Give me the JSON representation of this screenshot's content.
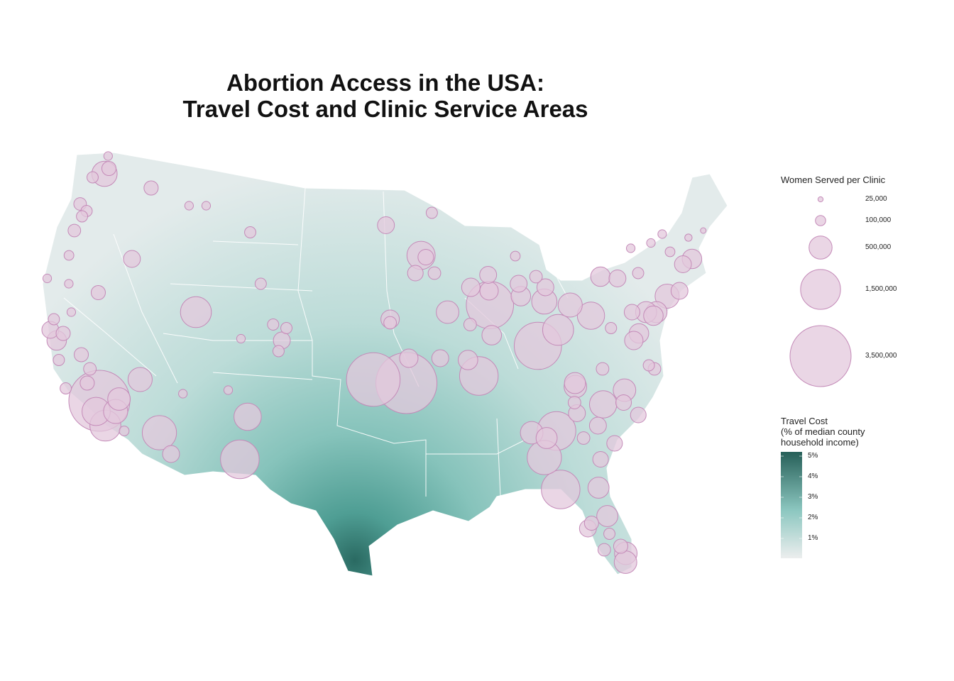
{
  "title": {
    "line1": "Abortion Access in the USA:",
    "line2": "Travel Cost and Clinic Service Areas"
  },
  "size_legend": {
    "title": "Women Served per Clinic",
    "entries": [
      {
        "value": 25000,
        "label": "25,000"
      },
      {
        "value": 100000,
        "label": "100,000"
      },
      {
        "value": 500000,
        "label": "500,000"
      },
      {
        "value": 1500000,
        "label": "1,500,000"
      },
      {
        "value": 3500000,
        "label": "3,500,000"
      }
    ]
  },
  "color_legend": {
    "title_line1": "Travel Cost",
    "title_line2": "(% of median county",
    "title_line3": "household income)",
    "ticks": [
      "5%",
      "4%",
      "3%",
      "2%",
      "1%"
    ],
    "range": [
      0,
      5.2
    ],
    "low_color": "#eceeee",
    "mid_color": "#8cc7c0",
    "high_color": "#265f58"
  },
  "colors": {
    "clinic_fill": "#e3c8dc",
    "clinic_stroke": "#c48ab8",
    "state_border": "#ffffff"
  },
  "clinics": [
    {
      "lon": -97.9,
      "lat": 36.0,
      "served": 2700000
    },
    {
      "lon": -95.3,
      "lat": 35.8,
      "served": 3500000
    },
    {
      "lon": -119.1,
      "lat": 34.8,
      "served": 3500000
    },
    {
      "lon": -84.75,
      "lat": 37.9,
      "served": 2100000
    },
    {
      "lon": -88.4,
      "lat": 40.2,
      "served": 2100000
    },
    {
      "lon": -89.6,
      "lat": 36.2,
      "served": 1400000
    },
    {
      "lon": -84.0,
      "lat": 29.8,
      "served": 1400000
    },
    {
      "lon": -85.0,
      "lat": 31.6,
      "served": 1100000
    },
    {
      "lon": -83.9,
      "lat": 33.1,
      "served": 1400000
    },
    {
      "lon": -107.8,
      "lat": 31.5,
      "served": 1400000
    },
    {
      "lon": -114.1,
      "lat": 33.0,
      "served": 1100000
    },
    {
      "lon": -112.5,
      "lat": 39.8,
      "served": 900000
    },
    {
      "lon": -118.3,
      "lat": 33.4,
      "served": 900000
    },
    {
      "lon": -119.2,
      "lat": 34.2,
      "served": 750000
    },
    {
      "lon": -94.0,
      "lat": 43.0,
      "served": 750000
    },
    {
      "lon": -83.0,
      "lat": 38.8,
      "served": 900000
    },
    {
      "lon": -80.2,
      "lat": 39.6,
      "served": 700000
    },
    {
      "lon": -80.1,
      "lat": 34.6,
      "served": 700000
    },
    {
      "lon": -82.1,
      "lat": 35.6,
      "served": 480000
    },
    {
      "lon": -83.9,
      "lat": 40.4,
      "served": 600000
    },
    {
      "lon": -81.8,
      "lat": 40.2,
      "served": 550000
    },
    {
      "lon": -107.5,
      "lat": 33.9,
      "served": 700000
    },
    {
      "lon": -116.2,
      "lat": 36.0,
      "served": 550000
    },
    {
      "lon": -117.6,
      "lat": 34.9,
      "served": 480000
    },
    {
      "lon": -79.8,
      "lat": 26.2,
      "served": 480000
    },
    {
      "lon": -79.9,
      "lat": 25.7,
      "served": 480000
    },
    {
      "lon": -80.8,
      "lat": 28.3,
      "served": 420000
    },
    {
      "lon": -81.2,
      "lat": 29.9,
      "served": 420000
    },
    {
      "lon": -78.3,
      "lat": 35.4,
      "served": 480000
    },
    {
      "lon": -91.9,
      "lat": 39.8,
      "served": 480000
    },
    {
      "lon": -96.6,
      "lat": 39.4,
      "served": 320000
    },
    {
      "lon": -95.1,
      "lat": 37.2,
      "served": 320000
    },
    {
      "lon": -92.6,
      "lat": 37.2,
      "served": 270000
    },
    {
      "lon": -73.7,
      "lat": 40.7,
      "served": 550000
    },
    {
      "lon": -74.8,
      "lat": 39.8,
      "served": 420000
    },
    {
      "lon": -76.5,
      "lat": 38.6,
      "served": 360000
    },
    {
      "lon": -77.0,
      "lat": 38.2,
      "served": 320000
    },
    {
      "lon": -77.6,
      "lat": 41.7,
      "served": 270000
    },
    {
      "lon": -79.0,
      "lat": 41.8,
      "served": 360000
    },
    {
      "lon": -71.9,
      "lat": 42.5,
      "served": 270000
    },
    {
      "lon": -71.05,
      "lat": 42.8,
      "served": 360000
    },
    {
      "lon": -72.6,
      "lat": 41.0,
      "served": 270000
    },
    {
      "lon": -75.65,
      "lat": 39.8,
      "served": 420000
    },
    {
      "lon": -76.8,
      "lat": 39.8,
      "served": 230000
    },
    {
      "lon": -73.2,
      "lat": 44.2,
      "served": 70000
    },
    {
      "lon": -71.0,
      "lat": 44.0,
      "served": 50000
    },
    {
      "lon": -69.6,
      "lat": 44.4,
      "served": 30000
    },
    {
      "lon": -74.3,
      "lat": 43.7,
      "served": 70000
    },
    {
      "lon": -76.1,
      "lat": 43.4,
      "served": 70000
    },
    {
      "lon": -72.8,
      "lat": 43.2,
      "served": 90000
    },
    {
      "lon": -75.8,
      "lat": 42.0,
      "served": 120000
    },
    {
      "lon": -122.3,
      "lat": 47.6,
      "served": 600000
    },
    {
      "lon": -122.0,
      "lat": 47.9,
      "served": 190000
    },
    {
      "lon": -117.9,
      "lat": 46.8,
      "served": 190000
    },
    {
      "lon": -123.9,
      "lat": 45.9,
      "served": 150000
    },
    {
      "lon": -123.2,
      "lat": 45.5,
      "served": 120000
    },
    {
      "lon": -123.5,
      "lat": 45.2,
      "served": 120000
    },
    {
      "lon": -123.9,
      "lat": 44.4,
      "served": 150000
    },
    {
      "lon": -123.9,
      "lat": 43.0,
      "served": 90000
    },
    {
      "lon": -118.5,
      "lat": 42.8,
      "served": 270000
    },
    {
      "lon": -120.8,
      "lat": 40.9,
      "served": 190000
    },
    {
      "lon": -114.3,
      "lat": 45.8,
      "served": 70000
    },
    {
      "lon": -112.8,
      "lat": 45.8,
      "served": 70000
    },
    {
      "lon": -108.7,
      "lat": 44.3,
      "served": 120000
    },
    {
      "lon": -97.0,
      "lat": 44.7,
      "served": 270000
    },
    {
      "lon": -93.0,
      "lat": 45.4,
      "served": 120000
    },
    {
      "lon": -122.3,
      "lat": 48.6,
      "served": 70000
    },
    {
      "lon": -123.3,
      "lat": 47.4,
      "served": 120000
    },
    {
      "lon": -124.1,
      "lat": 38.8,
      "served": 270000
    },
    {
      "lon": -123.4,
      "lat": 38.2,
      "served": 360000
    },
    {
      "lon": -124.0,
      "lat": 39.4,
      "served": 120000
    },
    {
      "lon": -123.0,
      "lat": 38.6,
      "served": 190000
    },
    {
      "lon": -122.9,
      "lat": 37.1,
      "served": 120000
    },
    {
      "lon": -122.7,
      "lat": 39.8,
      "served": 70000
    },
    {
      "lon": -125.3,
      "lat": 41.7,
      "served": 70000
    },
    {
      "lon": -123.4,
      "lat": 41.4,
      "served": 70000
    },
    {
      "lon": -121.2,
      "lat": 37.4,
      "served": 190000
    },
    {
      "lon": -120.3,
      "lat": 36.6,
      "served": 150000
    },
    {
      "lon": -121.9,
      "lat": 35.5,
      "served": 120000
    },
    {
      "lon": -120.3,
      "lat": 35.8,
      "served": 190000
    },
    {
      "lon": -105.3,
      "lat": 38.2,
      "served": 270000
    },
    {
      "lon": -106.1,
      "lat": 39.1,
      "served": 120000
    },
    {
      "lon": -105.0,
      "lat": 38.9,
      "served": 120000
    },
    {
      "lon": -105.5,
      "lat": 37.6,
      "served": 120000
    },
    {
      "lon": -107.4,
      "lat": 41.4,
      "served": 120000
    },
    {
      "lon": -108.6,
      "lat": 38.3,
      "served": 70000
    },
    {
      "lon": -89.9,
      "lat": 41.2,
      "served": 320000
    },
    {
      "lon": -88.4,
      "lat": 41.9,
      "served": 270000
    },
    {
      "lon": -88.4,
      "lat": 41.0,
      "served": 320000
    },
    {
      "lon": -88.4,
      "lat": 38.5,
      "served": 360000
    },
    {
      "lon": -90.1,
      "lat": 39.1,
      "served": 150000
    },
    {
      "lon": -85.9,
      "lat": 41.4,
      "served": 270000
    },
    {
      "lon": -84.4,
      "lat": 41.8,
      "served": 150000
    },
    {
      "lon": -85.8,
      "lat": 40.7,
      "served": 360000
    },
    {
      "lon": -83.7,
      "lat": 41.2,
      "served": 270000
    },
    {
      "lon": -92.9,
      "lat": 42.0,
      "served": 150000
    },
    {
      "lon": -94.5,
      "lat": 42.0,
      "served": 230000
    },
    {
      "lon": -93.6,
      "lat": 42.9,
      "served": 230000
    },
    {
      "lon": -86.0,
      "lat": 42.96,
      "served": 90000
    },
    {
      "lon": -96.6,
      "lat": 39.2,
      "served": 150000
    },
    {
      "lon": -90.4,
      "lat": 37.1,
      "served": 360000
    },
    {
      "lon": -85.8,
      "lat": 33.0,
      "served": 480000
    },
    {
      "lon": -84.7,
      "lat": 32.7,
      "served": 420000
    },
    {
      "lon": -81.9,
      "lat": 32.7,
      "served": 150000
    },
    {
      "lon": -79.6,
      "lat": 32.4,
      "served": 230000
    },
    {
      "lon": -80.8,
      "lat": 31.5,
      "served": 230000
    },
    {
      "lon": -82.3,
      "lat": 27.6,
      "served": 270000
    },
    {
      "lon": -82.0,
      "lat": 27.9,
      "served": 190000
    },
    {
      "lon": -80.8,
      "lat": 27.3,
      "served": 120000
    },
    {
      "lon": -80.1,
      "lat": 26.6,
      "served": 190000
    },
    {
      "lon": -81.3,
      "lat": 26.4,
      "served": 150000
    },
    {
      "lon": -77.5,
      "lat": 34.0,
      "served": 230000
    },
    {
      "lon": -82.1,
      "lat": 35.8,
      "served": 420000
    },
    {
      "lon": -82.3,
      "lat": 34.7,
      "served": 150000
    },
    {
      "lon": -82.2,
      "lat": 34.1,
      "served": 270000
    },
    {
      "lon": -79.8,
      "lat": 36.6,
      "served": 150000
    },
    {
      "lon": -78.5,
      "lat": 34.7,
      "served": 230000
    },
    {
      "lon": -80.7,
      "lat": 33.4,
      "served": 270000
    },
    {
      "lon": -78.7,
      "lat": 38.9,
      "served": 120000
    },
    {
      "lon": -76.1,
      "lat": 36.8,
      "served": 120000
    },
    {
      "lon": -75.7,
      "lat": 36.6,
      "served": 150000
    },
    {
      "lon": -75.1,
      "lat": 39.6,
      "served": 360000
    },
    {
      "lon": -112.7,
      "lat": 35.2,
      "served": 70000
    },
    {
      "lon": -109.2,
      "lat": 35.4,
      "served": 70000
    },
    {
      "lon": -113.0,
      "lat": 31.8,
      "served": 270000
    },
    {
      "lon": -116.8,
      "lat": 33.1,
      "served": 90000
    },
    {
      "lon": -117.7,
      "lat": 34.2,
      "served": 550000
    }
  ]
}
